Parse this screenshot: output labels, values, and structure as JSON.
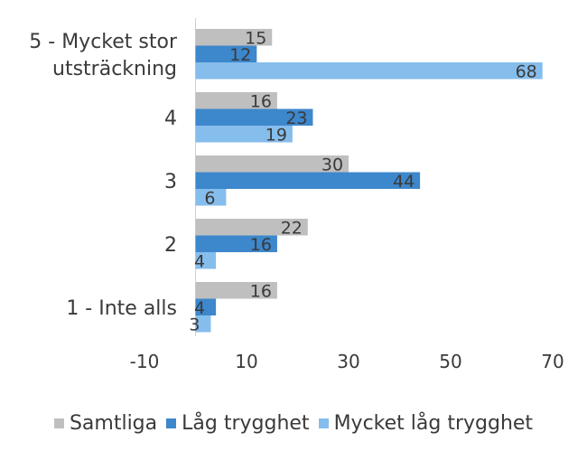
{
  "chart_data": {
    "type": "bar",
    "orientation": "horizontal",
    "categories": [
      "5 - Mycket stor utsträckning",
      "4",
      "3",
      "2",
      "1 - Inte alls"
    ],
    "category_lines": [
      [
        "5 - Mycket stor",
        "utsträckning"
      ],
      [
        "4"
      ],
      [
        "3"
      ],
      [
        "2"
      ],
      [
        "1 - Inte alls"
      ]
    ],
    "series": [
      {
        "name": "Samtliga",
        "values": [
          15,
          16,
          30,
          22,
          16
        ],
        "color": "#bfbfbf"
      },
      {
        "name": "Låg trygghet",
        "values": [
          12,
          23,
          44,
          16,
          4
        ],
        "color": "#3d87cc"
      },
      {
        "name": "Mycket låg trygghet",
        "values": [
          68,
          19,
          6,
          4,
          3
        ],
        "color": "#85bdec"
      }
    ],
    "xlim": [
      -10,
      70
    ],
    "xticks": [
      "-10",
      "10",
      "30",
      "50",
      "70"
    ],
    "xtick_values": [
      -10,
      10,
      30,
      50,
      70
    ],
    "data_labels": true,
    "grid": false,
    "legend_position": "bottom"
  }
}
